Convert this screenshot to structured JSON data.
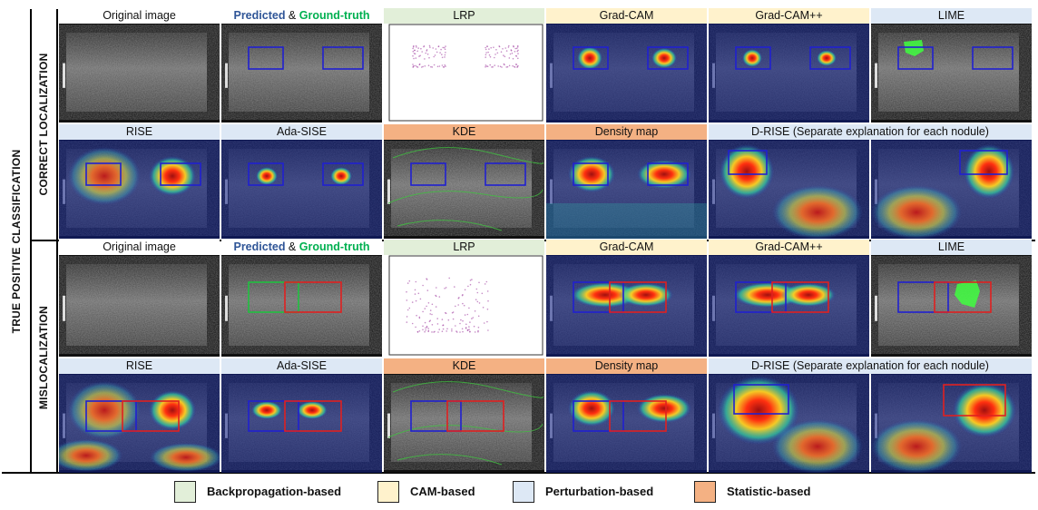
{
  "sidebar": {
    "outer_label": "TRUE POSITIVE CLASSIFICATION",
    "top_group_label": "CORRECT LOCALIZATION",
    "bottom_group_label": "MISLOCALIZATION"
  },
  "headers": {
    "original": "Original image",
    "predicted": "Predicted",
    "amp": " & ",
    "ground_truth": "Ground-truth",
    "lrp": "LRP",
    "gradcam": "Grad-CAM",
    "gradcampp": "Grad-CAM++",
    "lime": "LIME",
    "rise": "RISE",
    "adasise": "Ada-SISE",
    "kde": "KDE",
    "density": "Density map",
    "drise": "D-RISE (Separate explanation for each nodule)"
  },
  "legend": [
    {
      "label": "Backpropagation-based",
      "color": "#e2efd9"
    },
    {
      "label": "CAM-based",
      "color": "#fff2cc"
    },
    {
      "label": "Perturbation-based",
      "color": "#dde8f5"
    },
    {
      "label": "Statistic-based",
      "color": "#f4b183"
    }
  ],
  "colors": {
    "backprop": "#e2efd9",
    "cam": "#fff2cc",
    "perturbation": "#dde8f5",
    "statistic": "#f4b183",
    "predicted_text": "#2f5597",
    "ground_truth_text": "#00b050",
    "pred_box": "#2020d0",
    "mis_box": "#e02020",
    "gt_box": "#20c040"
  }
}
